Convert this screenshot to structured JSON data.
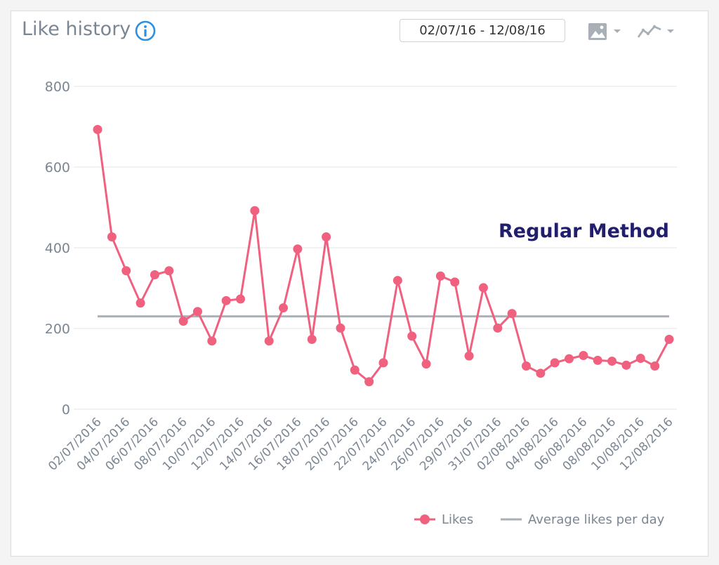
{
  "widget": {
    "title": "Like history",
    "date_range": "02/07/16 - 12/08/16",
    "info_icon": "info-icon",
    "export_icon": "image-icon",
    "chart_type_icon": "line-chart-icon"
  },
  "colors": {
    "series": "#f0607f",
    "average": "#a8afb7",
    "annotation": "#221e6e",
    "accent": "#2d8fe0",
    "text": "#7b8693"
  },
  "chart_data": {
    "type": "line",
    "title": "",
    "xlabel": "",
    "ylabel": "",
    "ylim": [
      0,
      800
    ],
    "yticks": [
      0,
      200,
      400,
      600,
      800
    ],
    "grid": true,
    "legend": "bottom-right",
    "x": [
      "02/07/2016",
      "03/07/2016",
      "04/07/2016",
      "05/07/2016",
      "06/07/2016",
      "07/07/2016",
      "08/07/2016",
      "09/07/2016",
      "10/07/2016",
      "11/07/2016",
      "12/07/2016",
      "13/07/2016",
      "14/07/2016",
      "15/07/2016",
      "16/07/2016",
      "17/07/2016",
      "18/07/2016",
      "19/07/2016",
      "20/07/2016",
      "21/07/2016",
      "22/07/2016",
      "23/07/2016",
      "24/07/2016",
      "25/07/2016",
      "26/07/2016",
      "28/07/2016",
      "29/07/2016",
      "30/07/2016",
      "31/07/2016",
      "01/08/2016",
      "02/08/2016",
      "03/08/2016",
      "04/08/2016",
      "05/08/2016",
      "06/08/2016",
      "07/08/2016",
      "08/08/2016",
      "09/08/2016",
      "10/08/2016",
      "11/08/2016",
      "12/08/2016"
    ],
    "xtick_labels": [
      "02/07/2016",
      "04/07/2016",
      "06/07/2016",
      "08/07/2016",
      "10/07/2016",
      "12/07/2016",
      "14/07/2016",
      "16/07/2016",
      "18/07/2016",
      "20/07/2016",
      "22/07/2016",
      "24/07/2016",
      "26/07/2016",
      "29/07/2016",
      "31/07/2016",
      "02/08/2016",
      "04/08/2016",
      "06/08/2016",
      "08/08/2016",
      "10/08/2016",
      "12/08/2016"
    ],
    "series": [
      {
        "name": "Likes",
        "values": [
          693,
          427,
          343,
          263,
          333,
          343,
          218,
          242,
          169,
          269,
          273,
          492,
          169,
          251,
          397,
          173,
          427,
          201,
          97,
          68,
          115,
          319,
          181,
          112,
          330,
          315,
          132,
          301,
          201,
          237,
          107,
          89,
          115,
          125,
          133,
          121,
          119,
          109,
          126,
          107,
          173
        ]
      }
    ],
    "average": {
      "name": "Average likes per day",
      "value": 230
    },
    "annotation": "Regular Method"
  }
}
